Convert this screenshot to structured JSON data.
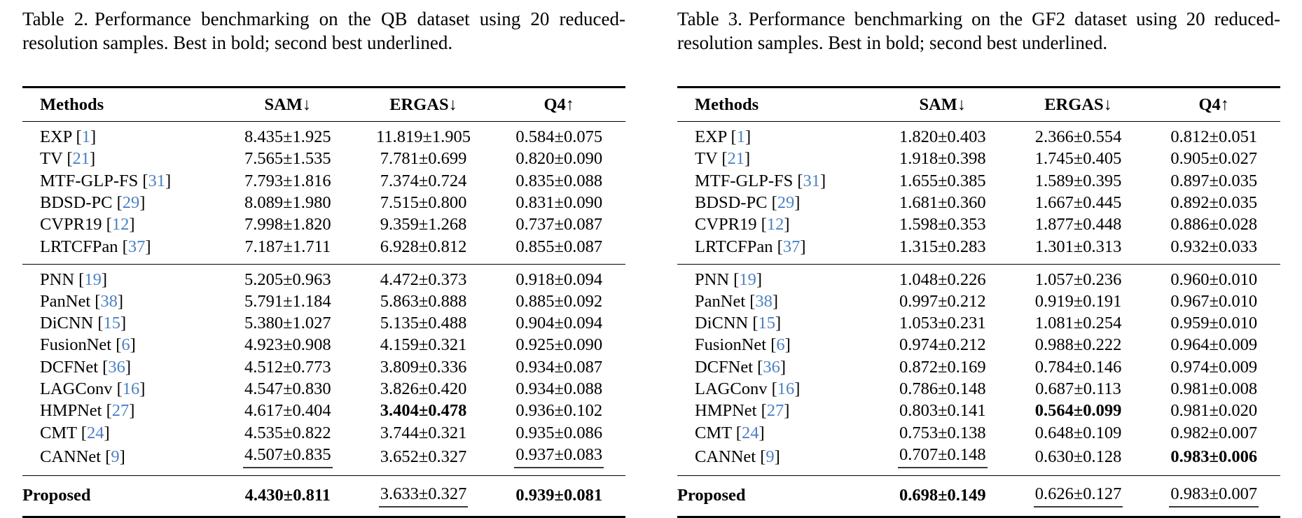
{
  "colors": {
    "citation_blue": "#4c80c4",
    "text": "#000000",
    "background": "#ffffff"
  },
  "tables": [
    {
      "id": "table-2",
      "caption_label": "Table 2.",
      "caption_body": "Performance benchmarking on the QB dataset using 20 reduced-resolution samples. Best in bold; second best underlined.",
      "columns": [
        "Methods",
        "SAM↓",
        "ERGAS↓",
        "Q4↑"
      ],
      "groups": [
        {
          "rows": [
            {
              "method": {
                "label": "EXP",
                "cite": "1"
              },
              "values": [
                {
                  "v": "8.435±1.925",
                  "style": "normal"
                },
                {
                  "v": "11.819±1.905",
                  "style": "normal"
                },
                {
                  "v": "0.584±0.075",
                  "style": "normal"
                }
              ]
            },
            {
              "method": {
                "label": "TV",
                "cite": "21"
              },
              "values": [
                {
                  "v": "7.565±1.535",
                  "style": "normal"
                },
                {
                  "v": "7.781±0.699",
                  "style": "normal"
                },
                {
                  "v": "0.820±0.090",
                  "style": "normal"
                }
              ]
            },
            {
              "method": {
                "label": "MTF-GLP-FS",
                "cite": "31"
              },
              "values": [
                {
                  "v": "7.793±1.816",
                  "style": "normal"
                },
                {
                  "v": "7.374±0.724",
                  "style": "normal"
                },
                {
                  "v": "0.835±0.088",
                  "style": "normal"
                }
              ]
            },
            {
              "method": {
                "label": "BDSD-PC",
                "cite": "29"
              },
              "values": [
                {
                  "v": "8.089±1.980",
                  "style": "normal"
                },
                {
                  "v": "7.515±0.800",
                  "style": "normal"
                },
                {
                  "v": "0.831±0.090",
                  "style": "normal"
                }
              ]
            },
            {
              "method": {
                "label": "CVPR19",
                "cite": "12"
              },
              "values": [
                {
                  "v": "7.998±1.820",
                  "style": "normal"
                },
                {
                  "v": "9.359±1.268",
                  "style": "normal"
                },
                {
                  "v": "0.737±0.087",
                  "style": "normal"
                }
              ]
            },
            {
              "method": {
                "label": "LRTCFPan",
                "cite": "37"
              },
              "values": [
                {
                  "v": "7.187±1.711",
                  "style": "normal"
                },
                {
                  "v": "6.928±0.812",
                  "style": "normal"
                },
                {
                  "v": "0.855±0.087",
                  "style": "normal"
                }
              ]
            }
          ]
        },
        {
          "rows": [
            {
              "method": {
                "label": "PNN",
                "cite": "19"
              },
              "values": [
                {
                  "v": "5.205±0.963",
                  "style": "normal"
                },
                {
                  "v": "4.472±0.373",
                  "style": "normal"
                },
                {
                  "v": "0.918±0.094",
                  "style": "normal"
                }
              ]
            },
            {
              "method": {
                "label": "PanNet",
                "cite": "38"
              },
              "values": [
                {
                  "v": "5.791±1.184",
                  "style": "normal"
                },
                {
                  "v": "5.863±0.888",
                  "style": "normal"
                },
                {
                  "v": "0.885±0.092",
                  "style": "normal"
                }
              ]
            },
            {
              "method": {
                "label": "DiCNN",
                "cite": "15"
              },
              "values": [
                {
                  "v": "5.380±1.027",
                  "style": "normal"
                },
                {
                  "v": "5.135±0.488",
                  "style": "normal"
                },
                {
                  "v": "0.904±0.094",
                  "style": "normal"
                }
              ]
            },
            {
              "method": {
                "label": "FusionNet",
                "cite": "6"
              },
              "values": [
                {
                  "v": "4.923±0.908",
                  "style": "normal"
                },
                {
                  "v": "4.159±0.321",
                  "style": "normal"
                },
                {
                  "v": "0.925±0.090",
                  "style": "normal"
                }
              ]
            },
            {
              "method": {
                "label": "DCFNet",
                "cite": "36"
              },
              "values": [
                {
                  "v": "4.512±0.773",
                  "style": "normal"
                },
                {
                  "v": "3.809±0.336",
                  "style": "normal"
                },
                {
                  "v": "0.934±0.087",
                  "style": "normal"
                }
              ]
            },
            {
              "method": {
                "label": "LAGConv",
                "cite": "16"
              },
              "values": [
                {
                  "v": "4.547±0.830",
                  "style": "normal"
                },
                {
                  "v": "3.826±0.420",
                  "style": "normal"
                },
                {
                  "v": "0.934±0.088",
                  "style": "normal"
                }
              ]
            },
            {
              "method": {
                "label": "HMPNet",
                "cite": "27"
              },
              "values": [
                {
                  "v": "4.617±0.404",
                  "style": "normal"
                },
                {
                  "v": "3.404±0.478",
                  "style": "bold"
                },
                {
                  "v": "0.936±0.102",
                  "style": "normal"
                }
              ]
            },
            {
              "method": {
                "label": "CMT",
                "cite": "24"
              },
              "values": [
                {
                  "v": "4.535±0.822",
                  "style": "normal"
                },
                {
                  "v": "3.744±0.321",
                  "style": "normal"
                },
                {
                  "v": "0.935±0.086",
                  "style": "normal"
                }
              ]
            },
            {
              "method": {
                "label": "CANNet",
                "cite": "9"
              },
              "values": [
                {
                  "v": "4.507±0.835",
                  "style": "underline"
                },
                {
                  "v": "3.652±0.327",
                  "style": "normal"
                },
                {
                  "v": "0.937±0.083",
                  "style": "underline"
                }
              ]
            }
          ]
        }
      ],
      "final_row": {
        "method": {
          "label": "Proposed",
          "bold": true
        },
        "values": [
          {
            "v": "4.430±0.811",
            "style": "bold"
          },
          {
            "v": "3.633±0.327",
            "style": "underline"
          },
          {
            "v": "0.939±0.081",
            "style": "bold"
          }
        ]
      }
    },
    {
      "id": "table-3",
      "caption_label": "Table 3.",
      "caption_body": "Performance benchmarking on the GF2 dataset using 20 reduced-resolution samples. Best in bold; second best underlined.",
      "columns": [
        "Methods",
        "SAM↓",
        "ERGAS↓",
        "Q4↑"
      ],
      "groups": [
        {
          "rows": [
            {
              "method": {
                "label": "EXP",
                "cite": "1"
              },
              "values": [
                {
                  "v": "1.820±0.403",
                  "style": "normal"
                },
                {
                  "v": "2.366±0.554",
                  "style": "normal"
                },
                {
                  "v": "0.812±0.051",
                  "style": "normal"
                }
              ]
            },
            {
              "method": {
                "label": "TV",
                "cite": "21"
              },
              "values": [
                {
                  "v": "1.918±0.398",
                  "style": "normal"
                },
                {
                  "v": "1.745±0.405",
                  "style": "normal"
                },
                {
                  "v": "0.905±0.027",
                  "style": "normal"
                }
              ]
            },
            {
              "method": {
                "label": "MTF-GLP-FS",
                "cite": "31"
              },
              "values": [
                {
                  "v": "1.655±0.385",
                  "style": "normal"
                },
                {
                  "v": "1.589±0.395",
                  "style": "normal"
                },
                {
                  "v": "0.897±0.035",
                  "style": "normal"
                }
              ]
            },
            {
              "method": {
                "label": "BDSD-PC",
                "cite": "29"
              },
              "values": [
                {
                  "v": "1.681±0.360",
                  "style": "normal"
                },
                {
                  "v": "1.667±0.445",
                  "style": "normal"
                },
                {
                  "v": "0.892±0.035",
                  "style": "normal"
                }
              ]
            },
            {
              "method": {
                "label": "CVPR19",
                "cite": "12"
              },
              "values": [
                {
                  "v": "1.598±0.353",
                  "style": "normal"
                },
                {
                  "v": "1.877±0.448",
                  "style": "normal"
                },
                {
                  "v": "0.886±0.028",
                  "style": "normal"
                }
              ]
            },
            {
              "method": {
                "label": "LRTCFPan",
                "cite": "37"
              },
              "values": [
                {
                  "v": "1.315±0.283",
                  "style": "normal"
                },
                {
                  "v": "1.301±0.313",
                  "style": "normal"
                },
                {
                  "v": "0.932±0.033",
                  "style": "normal"
                }
              ]
            }
          ]
        },
        {
          "rows": [
            {
              "method": {
                "label": "PNN",
                "cite": "19"
              },
              "values": [
                {
                  "v": "1.048±0.226",
                  "style": "normal"
                },
                {
                  "v": "1.057±0.236",
                  "style": "normal"
                },
                {
                  "v": "0.960±0.010",
                  "style": "normal"
                }
              ]
            },
            {
              "method": {
                "label": "PanNet",
                "cite": "38"
              },
              "values": [
                {
                  "v": "0.997±0.212",
                  "style": "normal"
                },
                {
                  "v": "0.919±0.191",
                  "style": "normal"
                },
                {
                  "v": "0.967±0.010",
                  "style": "normal"
                }
              ]
            },
            {
              "method": {
                "label": "DiCNN",
                "cite": "15"
              },
              "values": [
                {
                  "v": "1.053±0.231",
                  "style": "normal"
                },
                {
                  "v": "1.081±0.254",
                  "style": "normal"
                },
                {
                  "v": "0.959±0.010",
                  "style": "normal"
                }
              ]
            },
            {
              "method": {
                "label": "FusionNet",
                "cite": "6"
              },
              "values": [
                {
                  "v": "0.974±0.212",
                  "style": "normal"
                },
                {
                  "v": "0.988±0.222",
                  "style": "normal"
                },
                {
                  "v": "0.964±0.009",
                  "style": "normal"
                }
              ]
            },
            {
              "method": {
                "label": "DCFNet",
                "cite": "36"
              },
              "values": [
                {
                  "v": "0.872±0.169",
                  "style": "normal"
                },
                {
                  "v": "0.784±0.146",
                  "style": "normal"
                },
                {
                  "v": "0.974±0.009",
                  "style": "normal"
                }
              ]
            },
            {
              "method": {
                "label": "LAGConv",
                "cite": "16"
              },
              "values": [
                {
                  "v": "0.786±0.148",
                  "style": "normal"
                },
                {
                  "v": "0.687±0.113",
                  "style": "normal"
                },
                {
                  "v": "0.981±0.008",
                  "style": "normal"
                }
              ]
            },
            {
              "method": {
                "label": "HMPNet",
                "cite": "27"
              },
              "values": [
                {
                  "v": "0.803±0.141",
                  "style": "normal"
                },
                {
                  "v": "0.564±0.099",
                  "style": "bold"
                },
                {
                  "v": "0.981±0.020",
                  "style": "normal"
                }
              ]
            },
            {
              "method": {
                "label": "CMT",
                "cite": "24"
              },
              "values": [
                {
                  "v": "0.753±0.138",
                  "style": "normal"
                },
                {
                  "v": "0.648±0.109",
                  "style": "normal"
                },
                {
                  "v": "0.982±0.007",
                  "style": "normal"
                }
              ]
            },
            {
              "method": {
                "label": "CANNet",
                "cite": "9"
              },
              "values": [
                {
                  "v": "0.707±0.148",
                  "style": "underline"
                },
                {
                  "v": "0.630±0.128",
                  "style": "normal"
                },
                {
                  "v": "0.983±0.006",
                  "style": "bold"
                }
              ]
            }
          ]
        }
      ],
      "final_row": {
        "method": {
          "label": "Proposed",
          "bold": true
        },
        "values": [
          {
            "v": "0.698±0.149",
            "style": "bold"
          },
          {
            "v": "0.626±0.127",
            "style": "underline"
          },
          {
            "v": "0.983±0.007",
            "style": "underline"
          }
        ]
      }
    }
  ]
}
